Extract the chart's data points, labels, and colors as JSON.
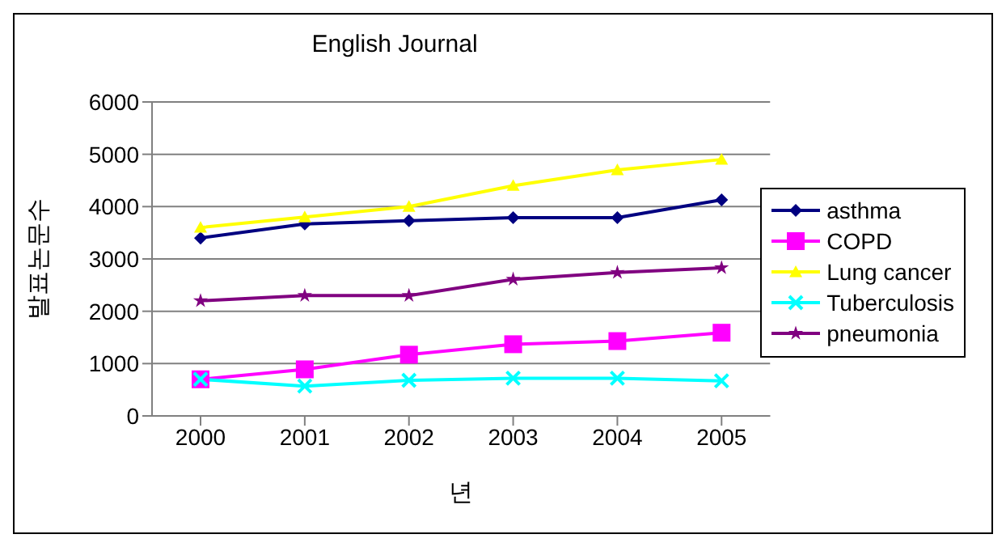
{
  "chart_data": {
    "type": "line",
    "title": "English Journal",
    "xlabel": "년",
    "ylabel": "발표논문수",
    "categories": [
      "2000",
      "2001",
      "2002",
      "2003",
      "2004",
      "2005"
    ],
    "series": [
      {
        "name": "asthma",
        "color": "#000080",
        "marker": "diamond",
        "values": [
          3400,
          3670,
          3730,
          3790,
          3790,
          4130
        ]
      },
      {
        "name": "COPD",
        "color": "#ff00ff",
        "marker": "square",
        "values": [
          700,
          890,
          1170,
          1370,
          1430,
          1590
        ]
      },
      {
        "name": "Lung cancer",
        "color": "#ffff00",
        "marker": "triangle",
        "values": [
          3600,
          3800,
          4000,
          4400,
          4700,
          4900
        ]
      },
      {
        "name": "Tuberculosis",
        "color": "#00ffff",
        "marker": "cross",
        "values": [
          700,
          570,
          680,
          720,
          720,
          670
        ]
      },
      {
        "name": "pneumonia",
        "color": "#800080",
        "marker": "star",
        "values": [
          2200,
          2300,
          2300,
          2610,
          2740,
          2830
        ]
      }
    ],
    "ylim": [
      0,
      6000
    ],
    "yticks": [
      0,
      1000,
      2000,
      3000,
      4000,
      5000,
      6000
    ],
    "grid": "y",
    "legend": "right"
  }
}
